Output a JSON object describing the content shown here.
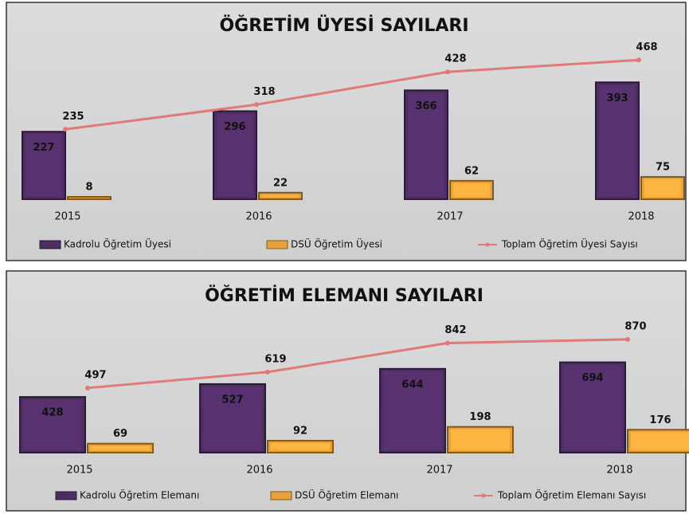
{
  "chart_data": [
    {
      "type": "bar",
      "title": "ÖĞRETİM ÜYESİ SAYILARI",
      "categories": [
        "2015",
        "2016",
        "2017",
        "2018"
      ],
      "ylim": [
        0,
        600
      ],
      "series": [
        {
          "name": "Kadrolu Öğretim Üyesi",
          "type": "bar",
          "color": "#4e2d63",
          "values": [
            227,
            296,
            366,
            393
          ]
        },
        {
          "name": "DSÜ Öğretim Üyesi",
          "type": "bar",
          "color": "#e8a23a",
          "values": [
            8,
            22,
            62,
            75
          ]
        },
        {
          "name": "Toplam Öğretim Üyesi Sayısı",
          "type": "line",
          "color": "#e07a7a",
          "values": [
            235,
            318,
            428,
            468
          ]
        }
      ]
    },
    {
      "type": "bar",
      "title": "ÖĞRETİM ELEMANI SAYILARI",
      "categories": [
        "2015",
        "2016",
        "2017",
        "2018"
      ],
      "ylim": [
        0,
        1200
      ],
      "series": [
        {
          "name": "Kadrolu Öğretim Elemanı",
          "type": "bar",
          "color": "#4e2d63",
          "values": [
            428,
            527,
            644,
            694
          ]
        },
        {
          "name": "DSÜ Öğretim Elemanı",
          "type": "bar",
          "color": "#e8a23a",
          "values": [
            69,
            92,
            198,
            176
          ]
        },
        {
          "name": "Toplam Öğretim Elemanı Sayısı",
          "type": "line",
          "color": "#e07a7a",
          "values": [
            497,
            619,
            842,
            870
          ]
        }
      ]
    }
  ]
}
